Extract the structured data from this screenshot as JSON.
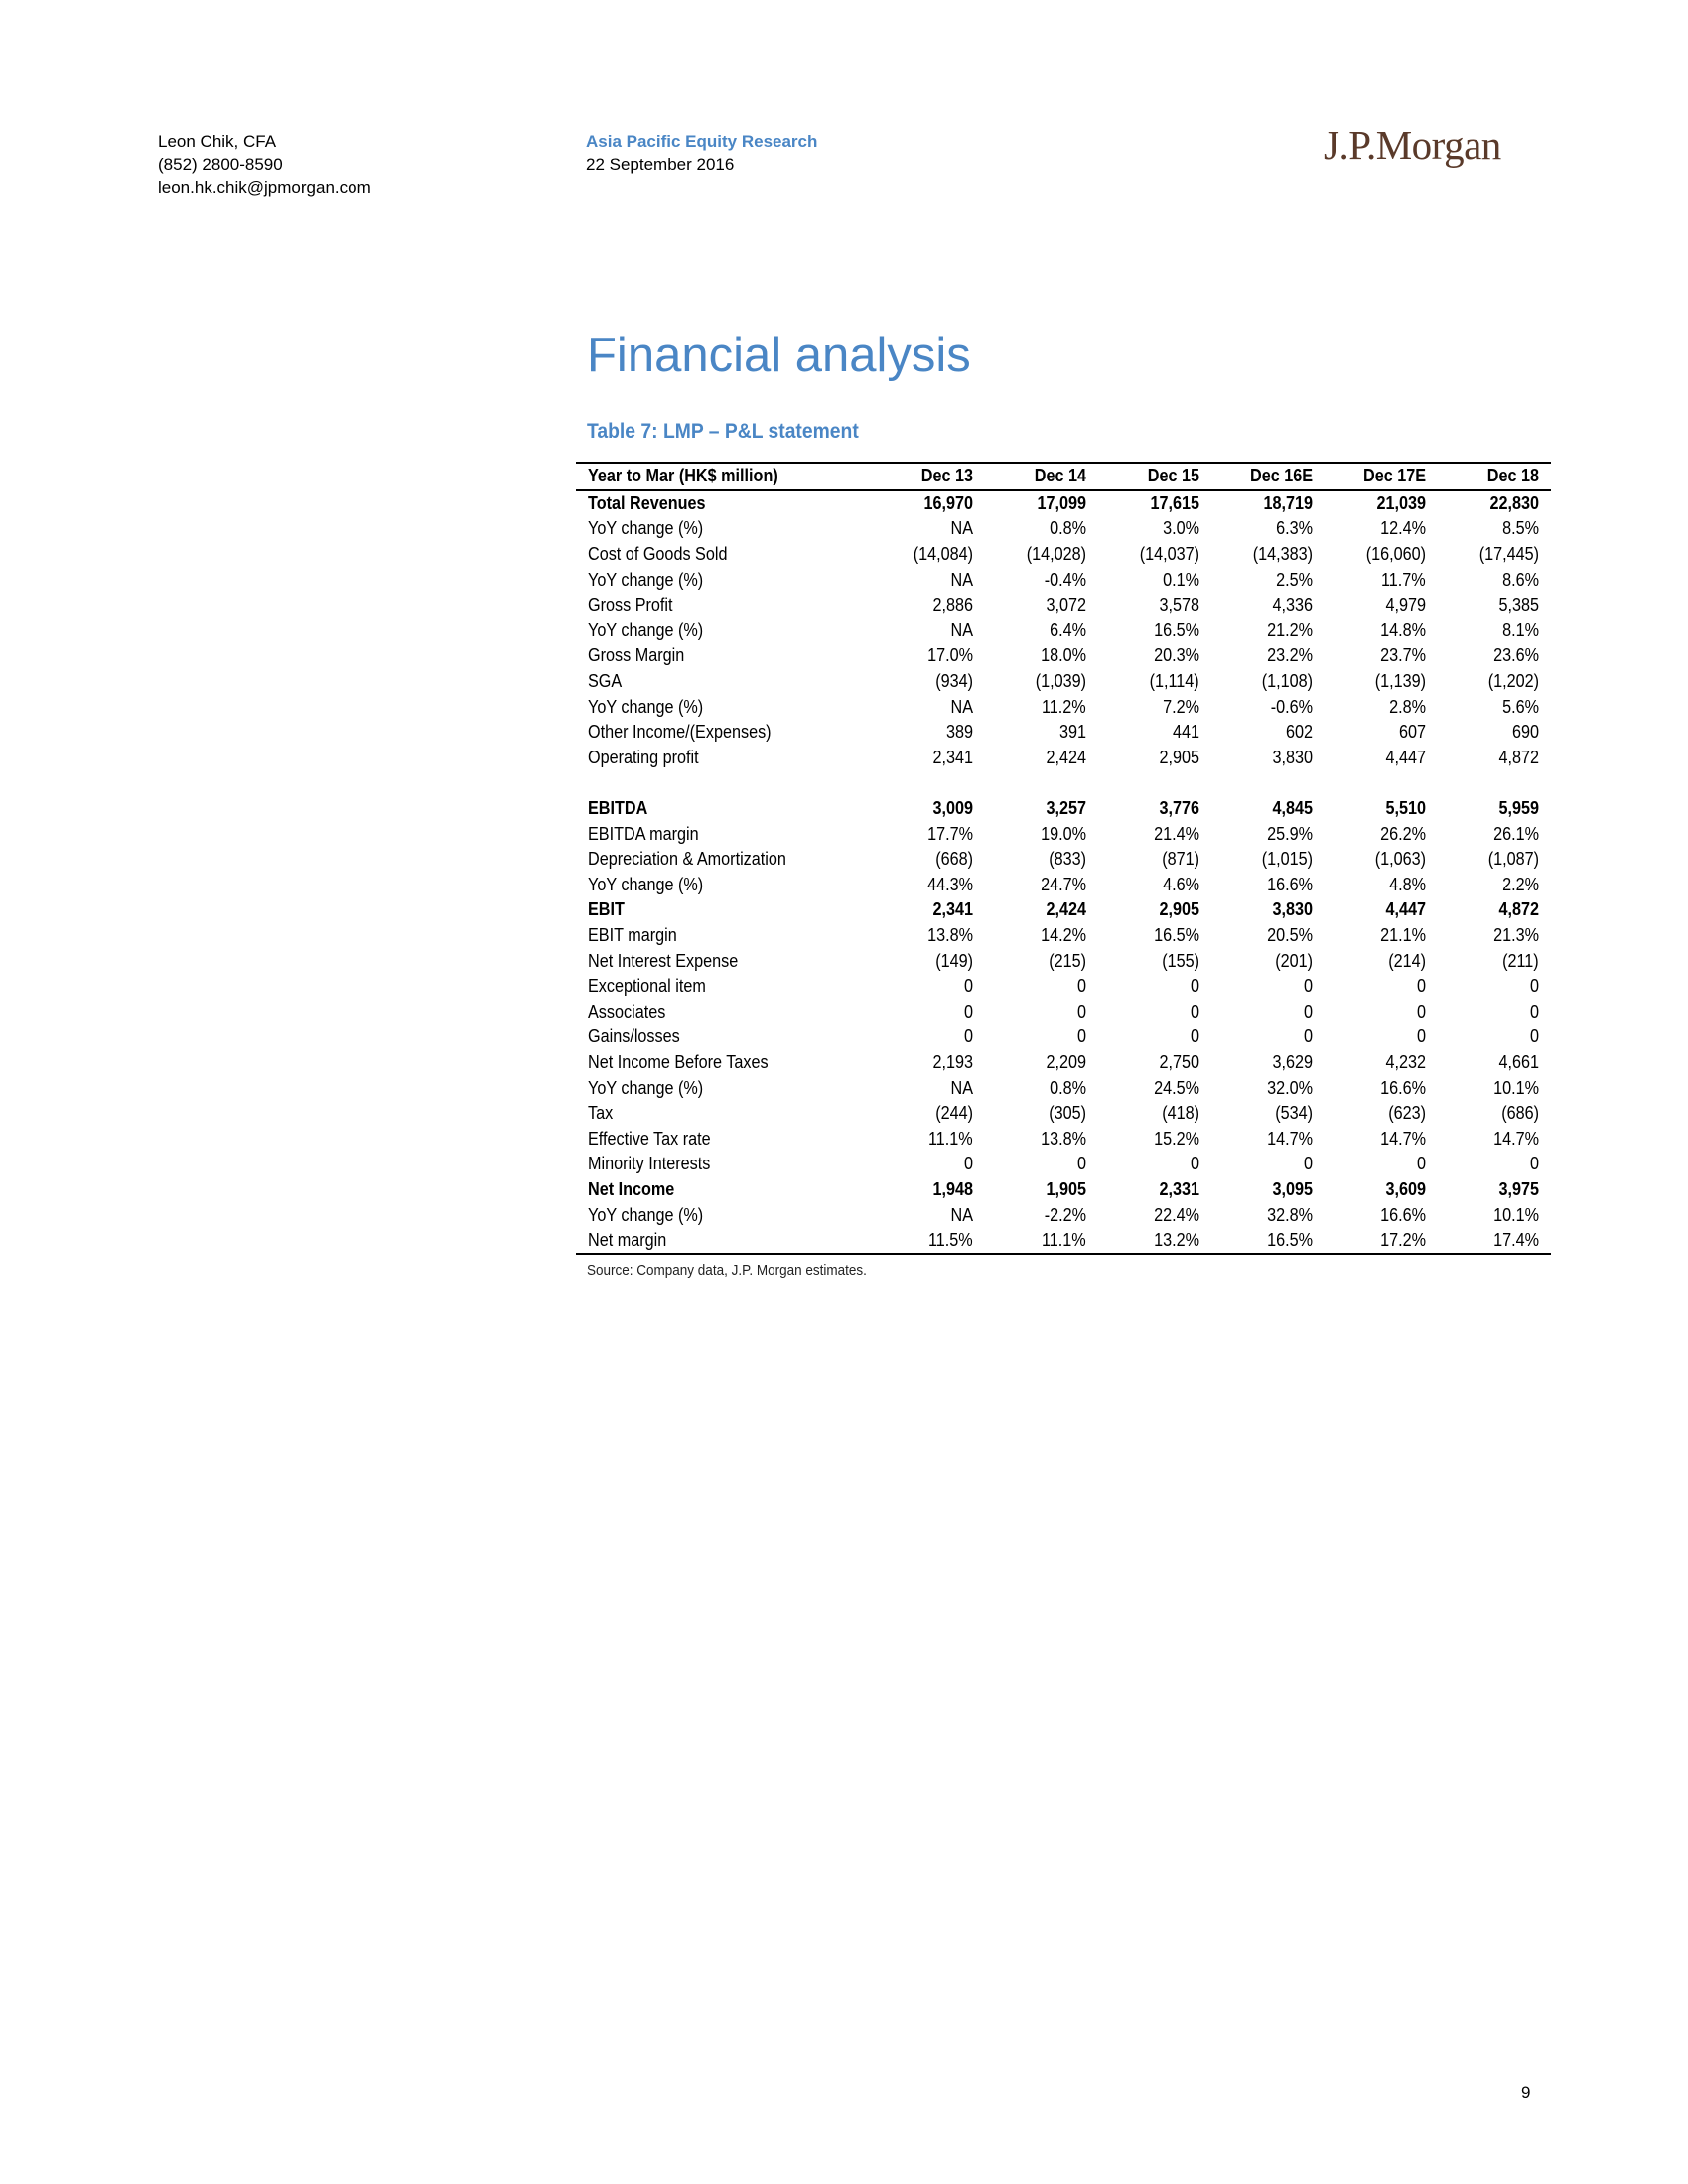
{
  "header": {
    "author_name": "Leon Chik, CFA",
    "author_phone": "(852) 2800-8590",
    "author_email": "leon.hk.chik@jpmorgan.com",
    "publication": "Asia Pacific Equity Research",
    "date": "22 September 2016",
    "logo_text": "J.P.Morgan"
  },
  "section_title": "Financial analysis",
  "table": {
    "title": "Table 7: LMP – P&L statement",
    "header": [
      "Year to Mar (HK$ million)",
      "Dec 13",
      "Dec 14",
      "Dec 15",
      "Dec 16E",
      "Dec 17E",
      "Dec 18"
    ],
    "rows": [
      {
        "label": "Total Revenues",
        "values": [
          "16,970",
          "17,099",
          "17,615",
          "18,719",
          "21,039",
          "22,830"
        ],
        "bold": true
      },
      {
        "label": "YoY change (%)",
        "values": [
          "NA",
          "0.8%",
          "3.0%",
          "6.3%",
          "12.4%",
          "8.5%"
        ]
      },
      {
        "label": "Cost of Goods Sold",
        "values": [
          "(14,084)",
          "(14,028)",
          "(14,037)",
          "(14,383)",
          "(16,060)",
          "(17,445)"
        ]
      },
      {
        "label": "YoY change (%)",
        "values": [
          "NA",
          "-0.4%",
          "0.1%",
          "2.5%",
          "11.7%",
          "8.6%"
        ]
      },
      {
        "label": "Gross Profit",
        "values": [
          "2,886",
          "3,072",
          "3,578",
          "4,336",
          "4,979",
          "5,385"
        ]
      },
      {
        "label": "YoY change (%)",
        "values": [
          "NA",
          "6.4%",
          "16.5%",
          "21.2%",
          "14.8%",
          "8.1%"
        ]
      },
      {
        "label": "Gross Margin",
        "values": [
          "17.0%",
          "18.0%",
          "20.3%",
          "23.2%",
          "23.7%",
          "23.6%"
        ]
      },
      {
        "label": "SGA",
        "values": [
          "(934)",
          "(1,039)",
          "(1,114)",
          "(1,108)",
          "(1,139)",
          "(1,202)"
        ]
      },
      {
        "label": "YoY change (%)",
        "values": [
          "NA",
          "11.2%",
          "7.2%",
          "-0.6%",
          "2.8%",
          "5.6%"
        ]
      },
      {
        "label": "Other Income/(Expenses)",
        "values": [
          "389",
          "391",
          "441",
          "602",
          "607",
          "690"
        ]
      },
      {
        "label": "Operating profit",
        "values": [
          "2,341",
          "2,424",
          "2,905",
          "3,830",
          "4,447",
          "4,872"
        ]
      },
      {
        "label": "",
        "values": [
          "",
          "",
          "",
          "",
          "",
          ""
        ],
        "blank": true
      },
      {
        "label": "EBITDA",
        "values": [
          "3,009",
          "3,257",
          "3,776",
          "4,845",
          "5,510",
          "5,959"
        ],
        "bold": true
      },
      {
        "label": "EBITDA margin",
        "values": [
          "17.7%",
          "19.0%",
          "21.4%",
          "25.9%",
          "26.2%",
          "26.1%"
        ]
      },
      {
        "label": "Depreciation & Amortization",
        "values": [
          "(668)",
          "(833)",
          "(871)",
          "(1,015)",
          "(1,063)",
          "(1,087)"
        ]
      },
      {
        "label": "YoY change (%)",
        "values": [
          "44.3%",
          "24.7%",
          "4.6%",
          "16.6%",
          "4.8%",
          "2.2%"
        ]
      },
      {
        "label": "EBIT",
        "values": [
          "2,341",
          "2,424",
          "2,905",
          "3,830",
          "4,447",
          "4,872"
        ],
        "bold": true
      },
      {
        "label": "EBIT margin",
        "values": [
          "13.8%",
          "14.2%",
          "16.5%",
          "20.5%",
          "21.1%",
          "21.3%"
        ]
      },
      {
        "label": "Net Interest Expense",
        "values": [
          "(149)",
          "(215)",
          "(155)",
          "(201)",
          "(214)",
          "(211)"
        ]
      },
      {
        "label": "Exceptional item",
        "values": [
          "0",
          "0",
          "0",
          "0",
          "0",
          "0"
        ]
      },
      {
        "label": "Associates",
        "values": [
          "0",
          "0",
          "0",
          "0",
          "0",
          "0"
        ]
      },
      {
        "label": "Gains/losses",
        "values": [
          "0",
          "0",
          "0",
          "0",
          "0",
          "0"
        ]
      },
      {
        "label": "Net Income Before Taxes",
        "values": [
          "2,193",
          "2,209",
          "2,750",
          "3,629",
          "4,232",
          "4,661"
        ]
      },
      {
        "label": "YoY change (%)",
        "values": [
          "NA",
          "0.8%",
          "24.5%",
          "32.0%",
          "16.6%",
          "10.1%"
        ]
      },
      {
        "label": "Tax",
        "values": [
          "(244)",
          "(305)",
          "(418)",
          "(534)",
          "(623)",
          "(686)"
        ]
      },
      {
        "label": "Effective Tax rate",
        "values": [
          "11.1%",
          "13.8%",
          "15.2%",
          "14.7%",
          "14.7%",
          "14.7%"
        ]
      },
      {
        "label": "Minority Interests",
        "values": [
          "0",
          "0",
          "0",
          "0",
          "0",
          "0"
        ]
      },
      {
        "label": "Net Income",
        "values": [
          "1,948",
          "1,905",
          "2,331",
          "3,095",
          "3,609",
          "3,975"
        ],
        "bold": true
      },
      {
        "label": "YoY change (%)",
        "values": [
          "NA",
          "-2.2%",
          "22.4%",
          "32.8%",
          "16.6%",
          "10.1%"
        ]
      },
      {
        "label": "Net margin",
        "values": [
          "11.5%",
          "11.1%",
          "13.2%",
          "16.5%",
          "17.2%",
          "17.4%"
        ]
      }
    ]
  },
  "source_note": "Source: Company data, J.P. Morgan estimates.",
  "page_number": "9",
  "colors": {
    "accent_blue": "#4A86C5",
    "logo_brown": "#5A3A2A"
  }
}
